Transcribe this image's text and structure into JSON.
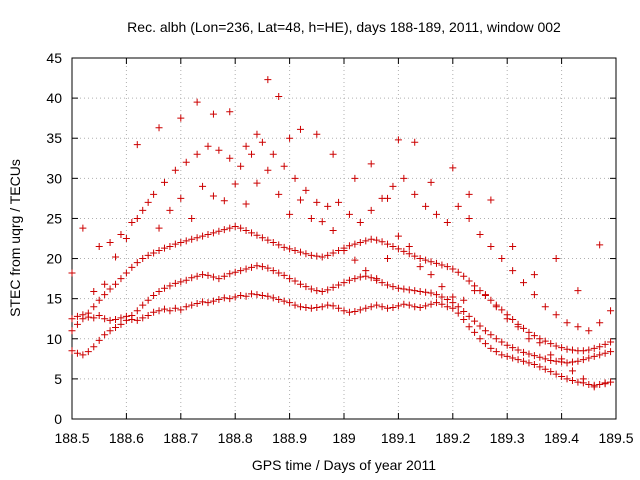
{
  "chart_data": {
    "type": "scatter",
    "title": "Rec. albh (Lon=236, Lat=48, h=HE), days 188-189, 2011, window 002",
    "xlabel": "GPS time / Days of year 2011",
    "ylabel": "STEC from uqrg / TECUs",
    "xlim": [
      188.5,
      189.5
    ],
    "ylim": [
      0,
      45
    ],
    "xticks": [
      188.5,
      188.6,
      188.7,
      188.8,
      188.9,
      189.0,
      189.1,
      189.2,
      189.3,
      189.4,
      189.5
    ],
    "xtick_labels": [
      "188.5",
      "188.6",
      "188.7",
      "188.8",
      "188.9",
      "189",
      "189.1",
      "189.2",
      "189.3",
      "189.4",
      "189.5"
    ],
    "yticks": [
      0,
      5,
      10,
      15,
      20,
      25,
      30,
      35,
      40,
      45
    ],
    "ytick_labels": [
      "0",
      "5",
      "10",
      "15",
      "20",
      "25",
      "30",
      "35",
      "40",
      "45"
    ],
    "grid": true,
    "marker": "plus",
    "color": "#cc0000",
    "series": [
      {
        "x": [
          188.5,
          188.51,
          188.52,
          188.53,
          188.54,
          188.55,
          188.56,
          188.57,
          188.58,
          188.59,
          188.6,
          188.61,
          188.62,
          188.63,
          188.64,
          188.65,
          188.66,
          188.67,
          188.68,
          188.69,
          188.7,
          188.71,
          188.72,
          188.73,
          188.74,
          188.75,
          188.76,
          188.77,
          188.78,
          188.79,
          188.8,
          188.81,
          188.82,
          188.83,
          188.84,
          188.85,
          188.86,
          188.87,
          188.88,
          188.89,
          188.9,
          188.91,
          188.92,
          188.93,
          188.94,
          188.95,
          188.96,
          188.97,
          188.98,
          188.99,
          189.0,
          189.01,
          189.02,
          189.03,
          189.04,
          189.05,
          189.06,
          189.07,
          189.08,
          189.09,
          189.1,
          189.11,
          189.12,
          189.13,
          189.14,
          189.15,
          189.16,
          189.17,
          189.18,
          189.19,
          189.2,
          189.21,
          189.22,
          189.23,
          189.24,
          189.25,
          189.26,
          189.27,
          189.28,
          189.29,
          189.3,
          189.31,
          189.32,
          189.33,
          189.34,
          189.35,
          189.36,
          189.37,
          189.38,
          189.39,
          189.4,
          189.41,
          189.42,
          189.43,
          189.44,
          189.45,
          189.46,
          189.47,
          189.48,
          189.49
        ],
        "y": [
          12.5,
          12.8,
          13.0,
          12.7,
          12.6,
          12.9,
          12.5,
          12.3,
          12.4,
          12.6,
          12.8,
          12.4,
          12.3,
          12.6,
          12.9,
          13.3,
          13.5,
          13.7,
          13.5,
          13.8,
          13.6,
          14.0,
          14.2,
          14.4,
          14.6,
          14.5,
          14.7,
          14.9,
          15.1,
          15.0,
          15.2,
          15.4,
          15.3,
          15.6,
          15.5,
          15.4,
          15.3,
          15.1,
          14.9,
          14.7,
          14.5,
          14.2,
          14.0,
          13.9,
          13.8,
          13.9,
          14.0,
          14.2,
          14.1,
          13.8,
          13.5,
          13.3,
          13.4,
          13.6,
          13.8,
          14.0,
          14.2,
          14.0,
          13.8,
          13.9,
          14.1,
          14.3,
          14.2,
          14.0,
          13.9,
          14.1,
          14.3,
          14.5,
          14.3,
          14.0,
          13.8,
          13.2,
          12.4,
          11.5,
          10.8,
          10.0,
          9.4,
          8.8,
          8.4,
          8.0,
          7.8,
          7.6,
          7.4,
          7.2,
          7.0,
          6.8,
          6.5,
          6.2,
          5.9,
          5.6,
          5.3,
          5.0,
          4.8,
          4.6,
          4.5,
          4.3,
          4.2,
          4.3,
          4.4,
          4.6
        ]
      },
      {
        "x": [
          188.5,
          188.51,
          188.52,
          188.53,
          188.54,
          188.55,
          188.56,
          188.57,
          188.58,
          188.59,
          188.6,
          188.61,
          188.62,
          188.63,
          188.64,
          188.65,
          188.66,
          188.67,
          188.68,
          188.69,
          188.7,
          188.71,
          188.72,
          188.73,
          188.74,
          188.75,
          188.76,
          188.77,
          188.78,
          188.79,
          188.8,
          188.81,
          188.82,
          188.83,
          188.84,
          188.85,
          188.86,
          188.87,
          188.88,
          188.89,
          188.9,
          188.91,
          188.92,
          188.93,
          188.94,
          188.95,
          188.96,
          188.97,
          188.98,
          188.99,
          189.0,
          189.01,
          189.02,
          189.03,
          189.04,
          189.05,
          189.06,
          189.07,
          189.08,
          189.09,
          189.1,
          189.11,
          189.12,
          189.13,
          189.14,
          189.15,
          189.16,
          189.17,
          189.18,
          189.19,
          189.2,
          189.21,
          189.22,
          189.23,
          189.24,
          189.25,
          189.26,
          189.27,
          189.28,
          189.29,
          189.3,
          189.31,
          189.32,
          189.33,
          189.34,
          189.35,
          189.36,
          189.37,
          189.38,
          189.39,
          189.4,
          189.41,
          189.42,
          189.43,
          189.44,
          189.45,
          189.46,
          189.47,
          189.48,
          189.49
        ],
        "y": [
          8.5,
          8.2,
          8.0,
          8.4,
          9.0,
          9.8,
          10.5,
          11.0,
          11.4,
          11.8,
          12.3,
          12.9,
          13.5,
          14.2,
          14.8,
          15.4,
          15.9,
          16.3,
          16.6,
          16.9,
          17.1,
          17.3,
          17.6,
          17.8,
          18.0,
          17.9,
          17.7,
          17.5,
          17.8,
          18.1,
          18.3,
          18.5,
          18.7,
          18.9,
          19.1,
          19.0,
          18.8,
          18.5,
          18.2,
          17.9,
          17.5,
          17.2,
          16.8,
          16.5,
          16.2,
          16.0,
          15.9,
          16.1,
          16.4,
          16.7,
          17.0,
          17.3,
          17.5,
          17.7,
          17.8,
          17.6,
          17.3,
          17.0,
          16.7,
          16.5,
          16.3,
          16.2,
          16.1,
          16.0,
          15.9,
          15.8,
          15.7,
          15.5,
          15.2,
          14.9,
          14.5,
          14.0,
          13.4,
          12.8,
          12.2,
          11.6,
          11.0,
          10.5,
          10.0,
          9.6,
          9.2,
          8.9,
          8.6,
          8.3,
          8.1,
          7.9,
          7.7,
          7.5,
          7.3,
          7.2,
          7.1,
          7.0,
          7.1,
          7.2,
          7.4,
          7.6,
          7.8,
          8.0,
          8.2,
          8.4
        ]
      },
      {
        "x": [
          188.5,
          188.51,
          188.52,
          188.53,
          188.54,
          188.55,
          188.56,
          188.57,
          188.58,
          188.59,
          188.6,
          188.61,
          188.62,
          188.63,
          188.64,
          188.65,
          188.66,
          188.67,
          188.68,
          188.69,
          188.7,
          188.71,
          188.72,
          188.73,
          188.74,
          188.75,
          188.76,
          188.77,
          188.78,
          188.79,
          188.8,
          188.81,
          188.82,
          188.83,
          188.84,
          188.85,
          188.86,
          188.87,
          188.88,
          188.89,
          188.9,
          188.91,
          188.92,
          188.93,
          188.94,
          188.95,
          188.96,
          188.97,
          188.98,
          188.99,
          189.0,
          189.01,
          189.02,
          189.03,
          189.04,
          189.05,
          189.06,
          189.07,
          189.08,
          189.09,
          189.1,
          189.11,
          189.12,
          189.13,
          189.14,
          189.15,
          189.16,
          189.17,
          189.18,
          189.19,
          189.2,
          189.21,
          189.22,
          189.23,
          189.24,
          189.25,
          189.26,
          189.27,
          189.28,
          189.29,
          189.3,
          189.31,
          189.32,
          189.33,
          189.34,
          189.35,
          189.36,
          189.37,
          189.38,
          189.39,
          189.4,
          189.41,
          189.42,
          189.43,
          189.44,
          189.45,
          189.46,
          189.47,
          189.48,
          189.49
        ],
        "y": [
          11.0,
          11.8,
          12.5,
          13.2,
          14.0,
          14.8,
          15.5,
          16.2,
          16.8,
          17.5,
          18.2,
          18.9,
          19.5,
          20.0,
          20.4,
          20.7,
          21.0,
          21.3,
          21.5,
          21.8,
          22.0,
          22.2,
          22.4,
          22.6,
          22.8,
          23.0,
          23.2,
          23.4,
          23.6,
          23.8,
          24.0,
          23.8,
          23.5,
          23.2,
          22.9,
          22.6,
          22.3,
          22.0,
          21.7,
          21.4,
          21.2,
          21.0,
          20.8,
          20.6,
          20.4,
          20.3,
          20.2,
          20.4,
          20.7,
          21.0,
          21.3,
          21.6,
          21.8,
          22.0,
          22.2,
          22.4,
          22.3,
          22.1,
          21.8,
          21.5,
          21.2,
          20.9,
          20.6,
          20.3,
          20.0,
          19.8,
          19.6,
          19.4,
          19.2,
          19.0,
          18.7,
          18.3,
          17.8,
          17.2,
          16.6,
          16.0,
          15.4,
          14.8,
          14.2,
          13.6,
          13.0,
          12.4,
          11.8,
          11.3,
          10.8,
          10.4,
          10.0,
          9.7,
          9.4,
          9.1,
          8.9,
          8.7,
          8.6,
          8.5,
          8.5,
          8.6,
          8.8,
          9.0,
          9.3,
          9.6
        ]
      },
      {
        "x": [
          188.55,
          188.57,
          188.59,
          188.61,
          188.63,
          188.65,
          188.67,
          188.69,
          188.71,
          188.73,
          188.75,
          188.77,
          188.79,
          188.81,
          188.83,
          188.85,
          188.87,
          188.89,
          188.91,
          188.93,
          188.95,
          188.97,
          188.99,
          189.01,
          189.03,
          189.05,
          189.07,
          189.09,
          189.11,
          189.13,
          189.15,
          189.17,
          189.19,
          189.21,
          189.23,
          189.25,
          189.27,
          189.29,
          189.31,
          189.33,
          189.35,
          189.37,
          189.39,
          189.41,
          189.43,
          189.45,
          189.47,
          189.49
        ],
        "y": [
          21.5,
          22.0,
          23.0,
          24.5,
          26.0,
          28.0,
          29.5,
          31.0,
          32.0,
          33.0,
          34.0,
          33.5,
          32.5,
          31.5,
          33.0,
          34.5,
          33.0,
          31.5,
          30.0,
          28.5,
          27.0,
          26.5,
          27.0,
          25.5,
          24.5,
          26.0,
          27.5,
          29.0,
          30.0,
          28.0,
          26.5,
          25.5,
          24.5,
          26.5,
          25.0,
          23.0,
          21.5,
          20.0,
          18.5,
          17.0,
          15.5,
          14.0,
          13.0,
          12.0,
          11.5,
          11.0,
          12.0,
          13.5
        ]
      },
      {
        "x": [
          188.62,
          188.66,
          188.7,
          188.73,
          188.76,
          188.79,
          188.82,
          188.84,
          188.86,
          188.88,
          188.9,
          188.92,
          188.95,
          188.98,
          189.02,
          189.05,
          189.08,
          189.1,
          189.13,
          189.16,
          189.2,
          189.23,
          189.27,
          189.31,
          189.35,
          189.39,
          189.43,
          189.47
        ],
        "y": [
          34.2,
          36.3,
          37.5,
          39.5,
          38.0,
          38.3,
          34.0,
          35.5,
          42.3,
          40.2,
          35.0,
          36.1,
          35.5,
          33.0,
          30.0,
          31.8,
          27.5,
          34.8,
          34.5,
          29.5,
          31.3,
          28.0,
          27.3,
          21.5,
          18.0,
          20.0,
          16.0,
          21.7
        ]
      },
      {
        "x": [
          188.5,
          188.52,
          188.54,
          188.56,
          188.58,
          188.6,
          188.62,
          188.64,
          188.66,
          188.68,
          188.7,
          188.72,
          188.74,
          188.76,
          188.78,
          188.8,
          188.82,
          188.84,
          188.86,
          188.88,
          188.9,
          188.92,
          188.94,
          188.96,
          188.98,
          189.0,
          189.02,
          189.04,
          189.06,
          189.08,
          189.1,
          189.12,
          189.14,
          189.16,
          189.18,
          189.2,
          189.22,
          189.24,
          189.26,
          189.28,
          189.3,
          189.32,
          189.34,
          189.36,
          189.38,
          189.4,
          189.42,
          189.44,
          189.46,
          189.48
        ],
        "y": [
          18.2,
          23.8,
          15.9,
          16.8,
          20.2,
          22.5,
          25.0,
          27.0,
          23.8,
          26.0,
          27.5,
          25.0,
          29.0,
          27.8,
          27.2,
          29.3,
          26.8,
          29.4,
          31.0,
          28.0,
          25.5,
          27.3,
          25.0,
          24.6,
          23.5,
          21.0,
          19.8,
          18.5,
          17.5,
          20.0,
          22.8,
          21.5,
          19.0,
          18.0,
          16.5,
          15.2,
          14.8,
          16.0,
          15.5,
          14.0,
          12.5,
          11.5,
          10.0,
          9.5,
          8.0,
          7.5,
          6.0,
          5.0,
          4.0,
          4.5
        ]
      }
    ]
  }
}
